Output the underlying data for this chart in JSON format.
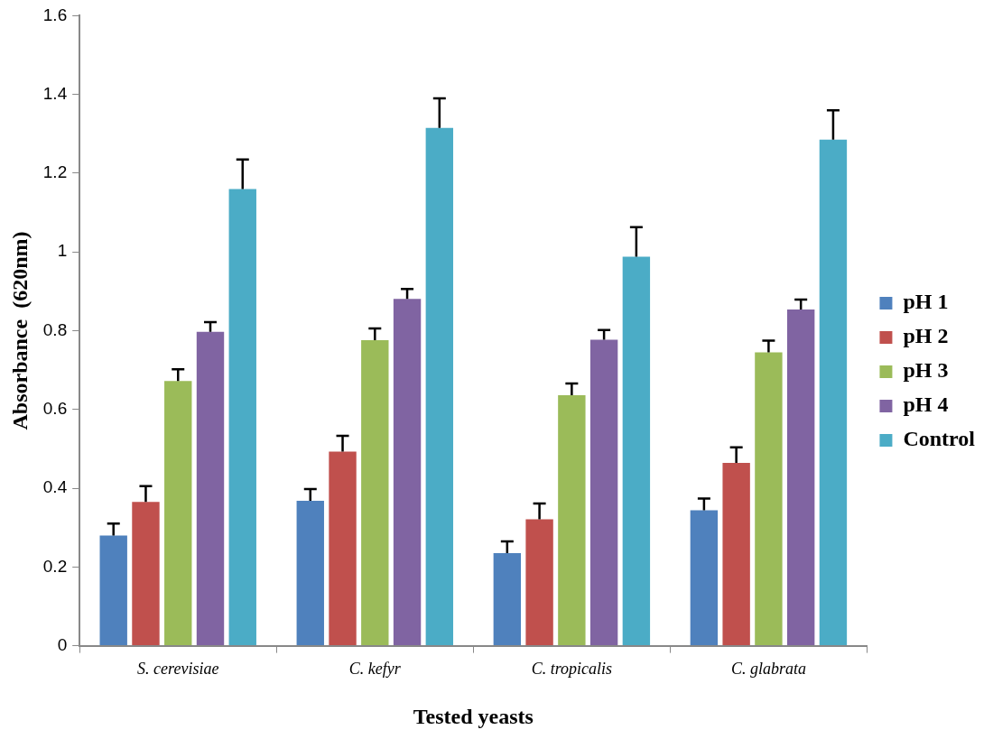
{
  "chart_data": {
    "type": "bar",
    "xlabel": "Tested yeasts",
    "ylabel": "Absorbance  (620nm)",
    "categories": [
      "S. cerevisiae",
      "C. kefyr",
      "C. tropicalis",
      "C. glabrata"
    ],
    "series": [
      {
        "name": "pH 1",
        "color": "#4f81bd",
        "values": [
          0.28,
          0.368,
          0.235,
          0.344
        ],
        "errors": [
          0.03,
          0.03,
          0.03,
          0.03
        ]
      },
      {
        "name": "pH 2",
        "color": "#c0504d",
        "values": [
          0.365,
          0.493,
          0.321,
          0.464
        ],
        "errors": [
          0.04,
          0.04,
          0.04,
          0.04
        ]
      },
      {
        "name": "pH 3",
        "color": "#9bbb59",
        "values": [
          0.672,
          0.776,
          0.636,
          0.745
        ],
        "errors": [
          0.03,
          0.03,
          0.03,
          0.03
        ]
      },
      {
        "name": "pH 4",
        "color": "#8064a2",
        "values": [
          0.797,
          0.881,
          0.777,
          0.854
        ],
        "errors": [
          0.025,
          0.025,
          0.025,
          0.025
        ]
      },
      {
        "name": "Control",
        "color": "#4bacc6",
        "values": [
          1.16,
          1.315,
          0.988,
          1.285
        ],
        "errors": [
          0.075,
          0.075,
          0.075,
          0.075
        ]
      }
    ],
    "ylim": [
      0,
      1.6
    ],
    "yticks": [
      0,
      0.2,
      0.4,
      0.6,
      0.8,
      1,
      1.2,
      1.4,
      1.6
    ],
    "grid": false,
    "legend": "right"
  }
}
